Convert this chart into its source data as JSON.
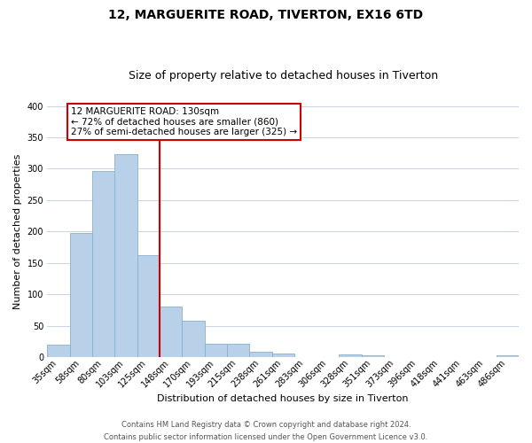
{
  "title1": "12, MARGUERITE ROAD, TIVERTON, EX16 6TD",
  "title2": "Size of property relative to detached houses in Tiverton",
  "xlabel": "Distribution of detached houses by size in Tiverton",
  "ylabel": "Number of detached properties",
  "bar_labels": [
    "35sqm",
    "58sqm",
    "80sqm",
    "103sqm",
    "125sqm",
    "148sqm",
    "170sqm",
    "193sqm",
    "215sqm",
    "238sqm",
    "261sqm",
    "283sqm",
    "306sqm",
    "328sqm",
    "351sqm",
    "373sqm",
    "396sqm",
    "418sqm",
    "441sqm",
    "463sqm",
    "486sqm"
  ],
  "bar_values": [
    20,
    197,
    296,
    323,
    163,
    81,
    58,
    21,
    21,
    8,
    6,
    0,
    0,
    4,
    3,
    0,
    0,
    0,
    0,
    0,
    3
  ],
  "bar_color": "#b8d0e8",
  "bar_edge_color": "#88b0d0",
  "vline_color": "#cc0000",
  "annotation_line1": "12 MARGUERITE ROAD: 130sqm",
  "annotation_line2": "← 72% of detached houses are smaller (860)",
  "annotation_line3": "27% of semi-detached houses are larger (325) →",
  "annotation_box_color": "#ffffff",
  "annotation_box_edge": "#cc0000",
  "ylim": [
    0,
    400
  ],
  "yticks": [
    0,
    50,
    100,
    150,
    200,
    250,
    300,
    350,
    400
  ],
  "footer_line1": "Contains HM Land Registry data © Crown copyright and database right 2024.",
  "footer_line2": "Contains public sector information licensed under the Open Government Licence v3.0.",
  "background_color": "#ffffff",
  "grid_color": "#c8d4e4",
  "title1_fontsize": 10,
  "title2_fontsize": 9,
  "xlabel_fontsize": 8,
  "ylabel_fontsize": 8,
  "tick_fontsize": 7,
  "annot_fontsize": 7.5,
  "footer_fontsize": 6
}
